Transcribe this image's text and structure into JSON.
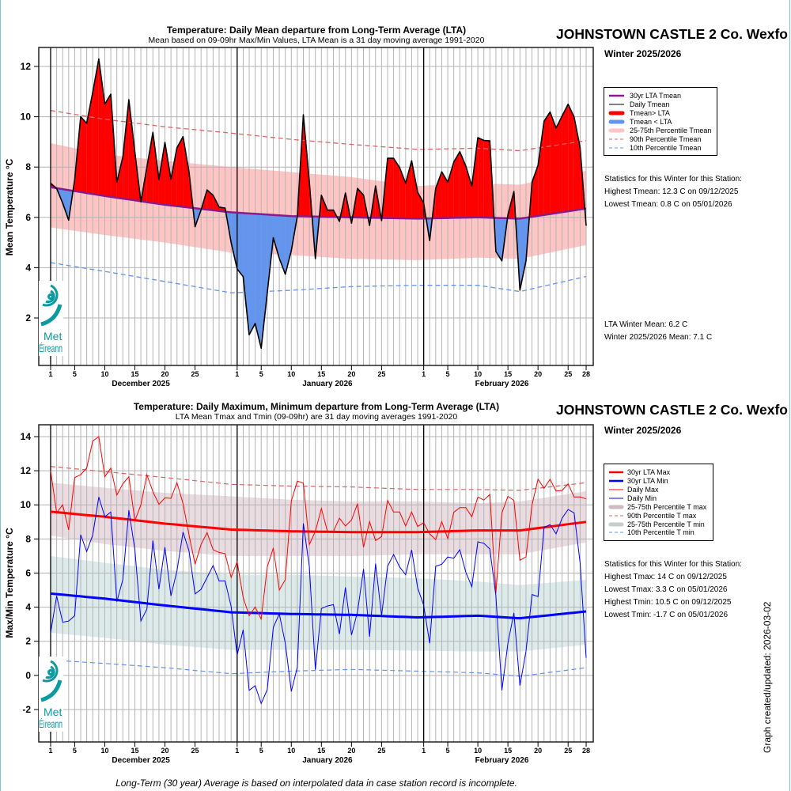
{
  "page": {
    "footer_note": "Long-Term (30 year) Average is based on interpolated data in case station record is incomplete.",
    "graph_date": "Graph created/updated:  2026-03-02",
    "border_color": "#7cc4c8"
  },
  "top_panel": {
    "station": "JOHNSTOWN CASTLE 2 Co. Wexfo",
    "season": "Winter 2025/2026",
    "logo": {
      "line1": "Met",
      "line2": "Éireann"
    },
    "legend": [
      "30yr LTA Tmean",
      "Daily Tmean",
      "Tmean> LTA",
      "Tmean < LTA",
      "25-75th Percentile Tmean",
      "90th Percentile Tmean",
      "10th Percentile Tmean"
    ],
    "stats": {
      "heading": "Statistics for this Winter for this Station:",
      "highest": "Highest Tmean: 12.3 C on 09/12/2025",
      "lowest": "Lowest Tmean: 0.8 C on 05/01/2026",
      "lta_mean": "LTA Winter Mean: 6.2 C",
      "season_mean": "Winter 2025/2026 Mean: 7.1 C"
    }
  },
  "bottom_panel": {
    "station": "JOHNSTOWN CASTLE 2 Co. Wexfo",
    "season": "Winter 2025/2026",
    "logo": {
      "line1": "Met",
      "line2": "Éireann"
    },
    "legend": [
      "30yr LTA Max",
      "30yr LTA Min",
      "Daily Max",
      "Daily Min",
      "25-75th Percentile T max",
      "90th Percentile T max",
      "25-75th Percentile T min",
      "10th Percentile T min"
    ],
    "stats": {
      "heading": "Statistics for this Winter for this Station:",
      "highest_tmax": "Highest Tmax: 14 C on 09/12/2025",
      "lowest_tmax": "Lowest Tmax: 3.3 C on 05/01/2026",
      "highest_tmin": "Highest Tmin: 10.5 C on 09/12/2025",
      "lowest_tmin": "Lowest Tmin: -1.7 C on 05/01/2026"
    }
  },
  "chart_data": [
    {
      "type": "area",
      "title": "Temperature: Daily Mean departure from Long-Term Average (LTA)",
      "subtitle": "Mean based on 09-09hr Max/Min Values, LTA Mean is a 31 day moving average 1991-2020",
      "ylabel": "Mean Temperature °C",
      "ylim": [
        0.1,
        12.75
      ],
      "y_ticks": [
        "2",
        "4",
        "6",
        "8",
        "10",
        "12"
      ],
      "grid": true,
      "legend_position": "right",
      "x_ticks": [
        {
          "date": "2025-12-01",
          "label": "1"
        },
        {
          "date": "2025-12-05",
          "label": "5"
        },
        {
          "date": "2025-12-10",
          "label": "10"
        },
        {
          "date": "2025-12-15",
          "label": "15"
        },
        {
          "date": "2025-12-20",
          "label": "20"
        },
        {
          "date": "2025-12-25",
          "label": "25"
        },
        {
          "date": "2026-01-01",
          "label": "1"
        },
        {
          "date": "2026-01-05",
          "label": "5"
        },
        {
          "date": "2026-01-10",
          "label": "10"
        },
        {
          "date": "2026-01-15",
          "label": "15"
        },
        {
          "date": "2026-01-20",
          "label": "20"
        },
        {
          "date": "2026-01-25",
          "label": "25"
        },
        {
          "date": "2026-02-01",
          "label": "1"
        },
        {
          "date": "2026-02-05",
          "label": "5"
        },
        {
          "date": "2026-02-10",
          "label": "10"
        },
        {
          "date": "2026-02-15",
          "label": "15"
        },
        {
          "date": "2026-02-20",
          "label": "20"
        },
        {
          "date": "2026-02-25",
          "label": "25"
        },
        {
          "date": "2026-02-28",
          "label": "28"
        }
      ],
      "month_labels": [
        {
          "date": "2025-12-16",
          "label": "December 2025"
        },
        {
          "date": "2026-01-16",
          "label": "January 2026"
        },
        {
          "date": "2026-02-14",
          "label": "February 2026"
        }
      ],
      "month_starts": [
        "2025-12-01",
        "2026-01-01",
        "2026-02-01"
      ],
      "x": [
        "2025-12-01",
        "2025-12-02",
        "2025-12-03",
        "2025-12-04",
        "2025-12-05",
        "2025-12-06",
        "2025-12-07",
        "2025-12-08",
        "2025-12-09",
        "2025-12-10",
        "2025-12-11",
        "2025-12-12",
        "2025-12-13",
        "2025-12-14",
        "2025-12-15",
        "2025-12-16",
        "2025-12-17",
        "2025-12-18",
        "2025-12-19",
        "2025-12-20",
        "2025-12-21",
        "2025-12-22",
        "2025-12-23",
        "2025-12-24",
        "2025-12-25",
        "2025-12-26",
        "2025-12-27",
        "2025-12-28",
        "2025-12-29",
        "2025-12-30",
        "2025-12-31",
        "2026-01-01",
        "2026-01-02",
        "2026-01-03",
        "2026-01-04",
        "2026-01-05",
        "2026-01-06",
        "2026-01-07",
        "2026-01-08",
        "2026-01-09",
        "2026-01-10",
        "2026-01-11",
        "2026-01-12",
        "2026-01-13",
        "2026-01-14",
        "2026-01-15",
        "2026-01-16",
        "2026-01-17",
        "2026-01-18",
        "2026-01-19",
        "2026-01-20",
        "2026-01-21",
        "2026-01-22",
        "2026-01-23",
        "2026-01-24",
        "2026-01-25",
        "2026-01-26",
        "2026-01-27",
        "2026-01-28",
        "2026-01-29",
        "2026-01-30",
        "2026-01-31",
        "2026-02-01",
        "2026-02-02",
        "2026-02-03",
        "2026-02-04",
        "2026-02-05",
        "2026-02-06",
        "2026-02-07",
        "2026-02-08",
        "2026-02-09",
        "2026-02-10",
        "2026-02-11",
        "2026-02-12",
        "2026-02-13",
        "2026-02-14",
        "2026-02-15",
        "2026-02-16",
        "2026-02-17",
        "2026-02-18",
        "2026-02-19",
        "2026-02-20",
        "2026-02-21",
        "2026-02-22",
        "2026-02-23",
        "2026-02-24",
        "2026-02-25",
        "2026-02-26",
        "2026-02-27",
        "2026-02-28"
      ],
      "knot_dates": [
        "2025-12-01",
        "2025-12-10",
        "2025-12-20",
        "2025-12-31",
        "2026-01-10",
        "2026-01-20",
        "2026-01-31",
        "2026-02-10",
        "2026-02-17",
        "2026-02-28"
      ],
      "daily": {
        "name": "Daily Tmean",
        "color": "#000000",
        "values": [
          7.36,
          7.15,
          6.57,
          5.89,
          7.5,
          10.0,
          9.74,
          10.97,
          12.3,
          10.5,
          10.9,
          7.4,
          8.4,
          10.68,
          8.6,
          6.62,
          8.0,
          9.38,
          7.51,
          8.98,
          7.51,
          8.77,
          9.21,
          7.8,
          5.63,
          6.3,
          7.09,
          6.88,
          6.41,
          6.37,
          5.0,
          3.95,
          3.64,
          1.33,
          1.78,
          0.8,
          3.0,
          5.19,
          4.37,
          3.74,
          4.68,
          6.05,
          10.08,
          7.4,
          4.36,
          6.88,
          6.29,
          6.29,
          5.84,
          6.97,
          5.77,
          7.15,
          6.88,
          5.68,
          7.25,
          5.87,
          8.35,
          8.35,
          7.98,
          7.36,
          8.25,
          7.0,
          6.57,
          5.08,
          7.15,
          7.81,
          7.4,
          8.2,
          8.61,
          8.04,
          7.25,
          9.17,
          9.06,
          9.04,
          4.64,
          4.27,
          6.1,
          7.03,
          3.11,
          4.27,
          7.4,
          8.07,
          9.82,
          10.19,
          9.55,
          10.03,
          10.5,
          9.99,
          8.77,
          5.68
        ]
      },
      "lta": {
        "name": "30yr LTA Tmean",
        "color": "#8b1a8b",
        "values": [
          7.2,
          6.85,
          6.5,
          6.2,
          6.05,
          6.0,
          5.95,
          6.0,
          5.95,
          6.35
        ]
      },
      "above_color": "#ff0000",
      "below_color": "#6495ed",
      "band": {
        "name": "25-75th Percentile Tmean",
        "color": "#ffc4c4",
        "lower": [
          5.6,
          5.3,
          5.0,
          4.6,
          4.5,
          4.35,
          4.3,
          4.4,
          4.35,
          4.9
        ],
        "upper": [
          8.95,
          8.5,
          8.25,
          8.0,
          7.8,
          7.6,
          7.25,
          7.35,
          7.3,
          7.85
        ]
      },
      "p90": {
        "name": "90th Percentile Tmean",
        "color": "#d96666",
        "values": [
          10.25,
          9.9,
          9.6,
          9.35,
          9.1,
          8.9,
          8.7,
          8.75,
          8.65,
          9.05
        ]
      },
      "p10": {
        "name": "10th Percentile Tmean",
        "color": "#6495ed",
        "values": [
          4.2,
          3.85,
          3.45,
          3.0,
          3.1,
          3.25,
          3.3,
          3.3,
          3.05,
          3.65
        ]
      }
    },
    {
      "type": "line",
      "title": "Temperature: Daily Maximum, Minimum departure from Long-Term Average (LTA)",
      "subtitle": "LTA Mean Tmax and Tmin (09-09hr) are 31 day moving averages 1991-2020",
      "ylabel": "Max/Min Temperature °C",
      "ylim": [
        -3.9,
        14.7
      ],
      "y_ticks": [
        "-2",
        "0",
        "2",
        "4",
        "6",
        "8",
        "10",
        "12",
        "14"
      ],
      "grid": true,
      "legend_position": "right",
      "x_ticks": [
        {
          "date": "2025-12-01",
          "label": "1"
        },
        {
          "date": "2025-12-05",
          "label": "5"
        },
        {
          "date": "2025-12-10",
          "label": "10"
        },
        {
          "date": "2025-12-15",
          "label": "15"
        },
        {
          "date": "2025-12-20",
          "label": "20"
        },
        {
          "date": "2025-12-25",
          "label": "25"
        },
        {
          "date": "2026-01-01",
          "label": "1"
        },
        {
          "date": "2026-01-05",
          "label": "5"
        },
        {
          "date": "2026-01-10",
          "label": "10"
        },
        {
          "date": "2026-01-15",
          "label": "15"
        },
        {
          "date": "2026-01-20",
          "label": "20"
        },
        {
          "date": "2026-01-25",
          "label": "25"
        },
        {
          "date": "2026-02-01",
          "label": "1"
        },
        {
          "date": "2026-02-05",
          "label": "5"
        },
        {
          "date": "2026-02-10",
          "label": "10"
        },
        {
          "date": "2026-02-15",
          "label": "15"
        },
        {
          "date": "2026-02-20",
          "label": "20"
        },
        {
          "date": "2026-02-25",
          "label": "25"
        },
        {
          "date": "2026-02-28",
          "label": "28"
        }
      ],
      "month_labels": [
        {
          "date": "2025-12-16",
          "label": "December 2025"
        },
        {
          "date": "2026-01-16",
          "label": "January 2026"
        },
        {
          "date": "2026-02-14",
          "label": "February 2026"
        }
      ],
      "month_starts": [
        "2025-12-01",
        "2026-01-01",
        "2026-02-01"
      ],
      "x": [
        "2025-12-01",
        "2025-12-02",
        "2025-12-03",
        "2025-12-04",
        "2025-12-05",
        "2025-12-06",
        "2025-12-07",
        "2025-12-08",
        "2025-12-09",
        "2025-12-10",
        "2025-12-11",
        "2025-12-12",
        "2025-12-13",
        "2025-12-14",
        "2025-12-15",
        "2025-12-16",
        "2025-12-17",
        "2025-12-18",
        "2025-12-19",
        "2025-12-20",
        "2025-12-21",
        "2025-12-22",
        "2025-12-23",
        "2025-12-24",
        "2025-12-25",
        "2025-12-26",
        "2025-12-27",
        "2025-12-28",
        "2025-12-29",
        "2025-12-30",
        "2025-12-31",
        "2026-01-01",
        "2026-01-02",
        "2026-01-03",
        "2026-01-04",
        "2026-01-05",
        "2026-01-06",
        "2026-01-07",
        "2026-01-08",
        "2026-01-09",
        "2026-01-10",
        "2026-01-11",
        "2026-01-12",
        "2026-01-13",
        "2026-01-14",
        "2026-01-15",
        "2026-01-16",
        "2026-01-17",
        "2026-01-18",
        "2026-01-19",
        "2026-01-20",
        "2026-01-21",
        "2026-01-22",
        "2026-01-23",
        "2026-01-24",
        "2026-01-25",
        "2026-01-26",
        "2026-01-27",
        "2026-01-28",
        "2026-01-29",
        "2026-01-30",
        "2026-01-31",
        "2026-02-01",
        "2026-02-02",
        "2026-02-03",
        "2026-02-04",
        "2026-02-05",
        "2026-02-06",
        "2026-02-07",
        "2026-02-08",
        "2026-02-09",
        "2026-02-10",
        "2026-02-11",
        "2026-02-12",
        "2026-02-13",
        "2026-02-14",
        "2026-02-15",
        "2026-02-16",
        "2026-02-17",
        "2026-02-18",
        "2026-02-19",
        "2026-02-20",
        "2026-02-21",
        "2026-02-22",
        "2026-02-23",
        "2026-02-24",
        "2026-02-25",
        "2026-02-26",
        "2026-02-27",
        "2026-02-28"
      ],
      "knot_dates": [
        "2025-12-01",
        "2025-12-10",
        "2025-12-20",
        "2025-12-31",
        "2026-01-10",
        "2026-01-20",
        "2026-01-31",
        "2026-02-10",
        "2026-02-17",
        "2026-02-28"
      ],
      "bands": [
        {
          "name": "25-75th Percentile T max",
          "color": "#eadbe0",
          "lower": [
            8.2,
            7.7,
            7.3,
            7.0,
            7.0,
            7.0,
            7.1,
            7.1,
            7.1,
            7.8
          ],
          "upper": [
            11.3,
            11.0,
            10.7,
            10.5,
            10.3,
            10.2,
            10.2,
            10.1,
            10.2,
            10.8
          ]
        },
        {
          "name": "25-75th Percentile T min",
          "color": "#dcebea",
          "lower": [
            2.5,
            2.2,
            1.8,
            1.5,
            1.5,
            1.5,
            1.45,
            1.4,
            1.4,
            1.8
          ],
          "upper": [
            7.0,
            6.6,
            6.2,
            5.9,
            5.9,
            5.8,
            5.7,
            5.5,
            5.3,
            5.6
          ]
        }
      ],
      "p90": {
        "name": "90th Percentile T max",
        "color": "#d96666",
        "values": [
          12.25,
          11.95,
          11.6,
          11.2,
          11.1,
          11.05,
          10.9,
          10.9,
          10.85,
          11.3
        ]
      },
      "p10": {
        "name": "10th Percentile T min",
        "color": "#6495ed",
        "values": [
          0.9,
          0.7,
          0.45,
          0.1,
          0.25,
          0.35,
          0.25,
          0.15,
          -0.05,
          0.45
        ]
      },
      "lta_max": {
        "name": "30yr LTA Max",
        "color": "#ff0000",
        "values": [
          9.6,
          9.3,
          8.9,
          8.55,
          8.45,
          8.4,
          8.4,
          8.5,
          8.5,
          9.0
        ]
      },
      "lta_min": {
        "name": "30yr LTA Min",
        "color": "#0000ff",
        "values": [
          4.8,
          4.5,
          4.1,
          3.7,
          3.6,
          3.55,
          3.4,
          3.5,
          3.35,
          3.75
        ]
      },
      "series": [
        {
          "name": "Daily Max",
          "color": "#ff0000",
          "values": [
            12.0,
            9.53,
            10.0,
            8.53,
            11.6,
            11.77,
            12.16,
            13.74,
            14.0,
            11.65,
            12.16,
            10.57,
            11.23,
            11.65,
            9.07,
            10.0,
            11.77,
            10.77,
            10.03,
            10.41,
            10.38,
            11.3,
            10.07,
            8.22,
            6.52,
            7.68,
            8.37,
            7.37,
            7.21,
            7.14,
            5.74,
            6.67,
            4.58,
            3.5,
            4.01,
            3.3,
            6.36,
            7.47,
            5.0,
            5.62,
            10.23,
            11.39,
            11.28,
            7.68,
            8.45,
            9.79,
            8.45,
            8.45,
            9.22,
            8.76,
            9.11,
            10.07,
            7.52,
            9.02,
            7.91,
            8.14,
            10.26,
            9.58,
            9.58,
            8.76,
            9.58,
            8.73,
            8.96,
            8.3,
            7.96,
            9.02,
            8.02,
            9.56,
            9.84,
            9.84,
            9.3,
            10.46,
            10.28,
            10.61,
            4.82,
            9.53,
            10.5,
            10.26,
            6.75,
            6.95,
            10.0,
            11.5,
            10.97,
            11.5,
            10.81,
            10.84,
            11.23,
            10.46,
            10.46,
            10.35
          ]
        },
        {
          "name": "Daily Min",
          "color": "#0000ff",
          "values": [
            2.5,
            4.66,
            3.12,
            3.19,
            3.5,
            8.25,
            7.26,
            8.22,
            10.46,
            9.3,
            9.58,
            4.32,
            5.62,
            9.69,
            7.37,
            3.19,
            3.89,
            7.91,
            5.05,
            7.52,
            4.66,
            6.13,
            8.4,
            7.29,
            4.78,
            5.05,
            5.74,
            6.44,
            5.54,
            5.54,
            4.04,
            1.18,
            2.68,
            -0.88,
            -0.6,
            -1.65,
            -0.83,
            2.81,
            3.61,
            1.88,
            -0.94,
            0.49,
            8.91,
            6.36,
            0.33,
            3.92,
            4.07,
            4.15,
            2.42,
            5.16,
            2.37,
            3.74,
            6.24,
            2.27,
            6.55,
            3.5,
            6.4,
            7.09,
            6.36,
            5.9,
            7.36,
            5.13,
            4.12,
            1.88,
            6.4,
            6.52,
            6.94,
            6.87,
            7.37,
            6.05,
            5.2,
            7.83,
            7.75,
            7.41,
            4.67,
            -0.88,
            1.88,
            3.66,
            -0.6,
            1.42,
            4.74,
            4.62,
            8.68,
            8.84,
            8.3,
            9.22,
            9.73,
            9.53,
            6.59,
            1.03
          ]
        }
      ]
    }
  ]
}
